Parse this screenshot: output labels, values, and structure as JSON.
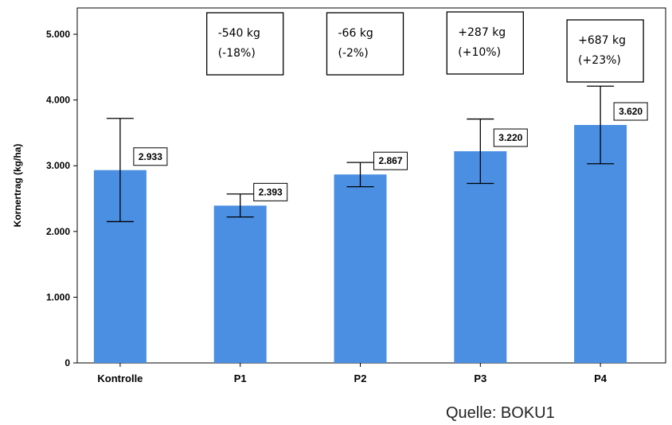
{
  "chart_data": {
    "type": "bar",
    "ylabel": "Kornertrag (kg/ha)",
    "xlabel": "",
    "ylim": [
      0,
      5400
    ],
    "yticks": [
      0,
      1000,
      2000,
      3000,
      4000,
      5000
    ],
    "ytick_labels": [
      "0",
      "1.000",
      "2.000",
      "3.000",
      "4.000",
      "5.000"
    ],
    "categories": [
      "Kontrolle",
      "P1",
      "P2",
      "P3",
      "P4"
    ],
    "values": [
      2933,
      2393,
      2867,
      3220,
      3620
    ],
    "value_labels": [
      "2.933",
      "2.393",
      "2.867",
      "3.220",
      "3.620"
    ],
    "error_low": [
      2150,
      2220,
      2680,
      2730,
      3030
    ],
    "error_high": [
      3720,
      2570,
      3050,
      3710,
      4210
    ],
    "bar_color": "#4a8fe2",
    "annotations": [
      {
        "category": "P1",
        "lines": [
          "-540 kg",
          "(-18%)"
        ]
      },
      {
        "category": "P2",
        "lines": [
          "-66 kg",
          "(-2%)"
        ]
      },
      {
        "category": "P3",
        "lines": [
          "+287 kg",
          "(+10%)"
        ]
      },
      {
        "category": "P4",
        "lines": [
          "+687 kg",
          "(+23%)"
        ]
      }
    ],
    "grid": false
  },
  "source": "Quelle: BOKU1"
}
